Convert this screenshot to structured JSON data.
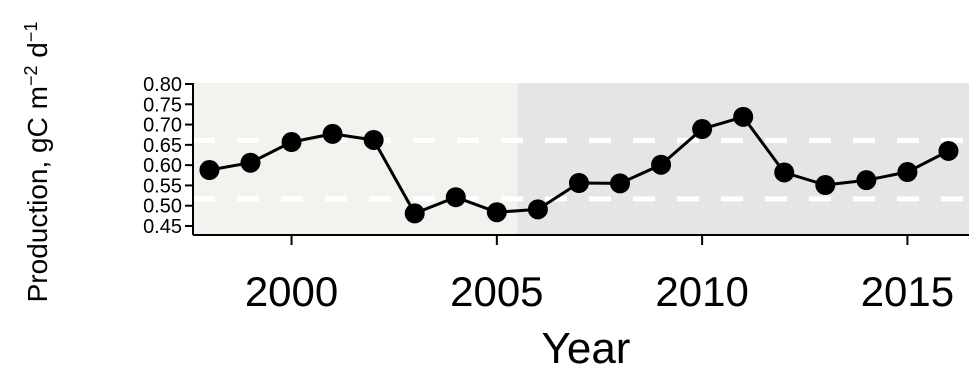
{
  "chart_data": {
    "type": "line",
    "title": "",
    "xlabel": "Year",
    "ylabel": "Production, gC m",
    "ylabel_sup1": "−2",
    "ylabel_mid": " d",
    "ylabel_sup2": "−1",
    "xlim": [
      1997.6,
      2016.5
    ],
    "ylim": [
      0.45,
      0.8
    ],
    "x_ticks": [
      2000,
      2005,
      2010,
      2015
    ],
    "y_ticks": [
      0.45,
      0.5,
      0.55,
      0.6,
      0.65,
      0.7,
      0.75,
      0.8
    ],
    "y_tick_labels": [
      "0.45",
      "0.50",
      "0.55",
      "0.60",
      "0.65",
      "0.70",
      "0.75",
      "0.80"
    ],
    "x_tick_labels": [
      "2000",
      "2005",
      "2010",
      "2015"
    ],
    "regime_split_year": 2005.5,
    "regime_colors": [
      "#f1f3ef",
      "#e5e5e5"
    ],
    "reference_lines": [
      0.517,
      0.661
    ],
    "series": [
      {
        "x": [
          1998,
          1999,
          2000,
          2001,
          2002,
          2003,
          2004,
          2005,
          2006,
          2007,
          2008,
          2009,
          2010,
          2011,
          2012,
          2013,
          2014,
          2015,
          2016
        ],
        "values": [
          0.588,
          0.606,
          0.657,
          0.677,
          0.662,
          0.481,
          0.521,
          0.484,
          0.491,
          0.556,
          0.555,
          0.601,
          0.689,
          0.719,
          0.582,
          0.551,
          0.563,
          0.583,
          0.635
        ]
      }
    ]
  }
}
